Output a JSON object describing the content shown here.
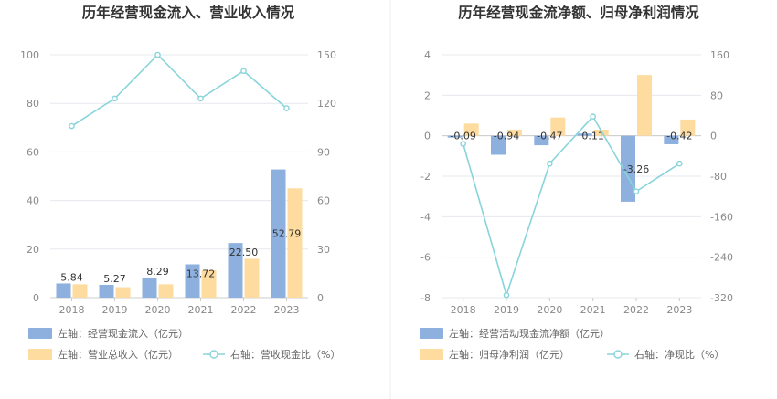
{
  "chart_data": [
    {
      "type": "bar+line",
      "title": "历年经营现金流入、营业收入情况",
      "categories": [
        "2018",
        "2019",
        "2020",
        "2021",
        "2022",
        "2023"
      ],
      "left_axis": {
        "ticks": [
          "0",
          "20",
          "40",
          "60",
          "80",
          "100"
        ],
        "ylim": [
          0,
          100
        ]
      },
      "right_axis": {
        "ticks": [
          "0",
          "30",
          "60",
          "90",
          "120",
          "150"
        ],
        "ylim": [
          0,
          150
        ]
      },
      "series": [
        {
          "name": "左轴：经营现金流入（亿元）",
          "type": "bar",
          "axis": "left",
          "color": "#8eb0de",
          "values": [
            5.84,
            5.27,
            8.29,
            13.72,
            22.5,
            52.79
          ],
          "labels": [
            "5.84",
            "5.27",
            "8.29",
            "13.72",
            "22.50",
            "52.79"
          ]
        },
        {
          "name": "左轴：营业总收入（亿元）",
          "type": "bar",
          "axis": "left",
          "color": "#fedb9e",
          "values": [
            5.5,
            4.3,
            5.5,
            11.3,
            16.0,
            45.0
          ]
        },
        {
          "name": "右轴：营收现金比（%）",
          "type": "line",
          "axis": "right",
          "color": "#88d4db",
          "values": [
            106,
            123,
            150,
            123,
            140,
            117
          ]
        }
      ],
      "legend_position": "bottom"
    },
    {
      "type": "bar+line",
      "title": "历年经营现金流净额、归母净利润情况",
      "categories": [
        "2018",
        "2019",
        "2020",
        "2021",
        "2022",
        "2023"
      ],
      "left_axis": {
        "ticks": [
          "-8",
          "-6",
          "-4",
          "-2",
          "0",
          "2",
          "4"
        ],
        "ylim": [
          -8,
          4
        ]
      },
      "right_axis": {
        "ticks": [
          "-320",
          "-240",
          "-160",
          "-80",
          "0",
          "80",
          "160"
        ],
        "ylim": [
          -320,
          160
        ]
      },
      "series": [
        {
          "name": "左轴：经营活动现金流净额（亿元）",
          "type": "bar",
          "axis": "left",
          "color": "#8eb0de",
          "values": [
            -0.09,
            -0.94,
            -0.47,
            0.11,
            -3.26,
            -0.42
          ],
          "labels": [
            "-0.09",
            "-0.94",
            "-0.47",
            "0.11",
            "-3.26",
            "-0.42"
          ]
        },
        {
          "name": "左轴：归母净利润（亿元）",
          "type": "bar",
          "axis": "left",
          "color": "#fedb9e",
          "values": [
            0.6,
            0.3,
            0.9,
            0.3,
            3.0,
            0.8
          ]
        },
        {
          "name": "右轴：净现比（%）",
          "type": "line",
          "axis": "right",
          "color": "#88d4db",
          "values": [
            -16,
            -315,
            -55,
            38,
            -110,
            -55
          ]
        }
      ],
      "legend_position": "bottom"
    }
  ]
}
